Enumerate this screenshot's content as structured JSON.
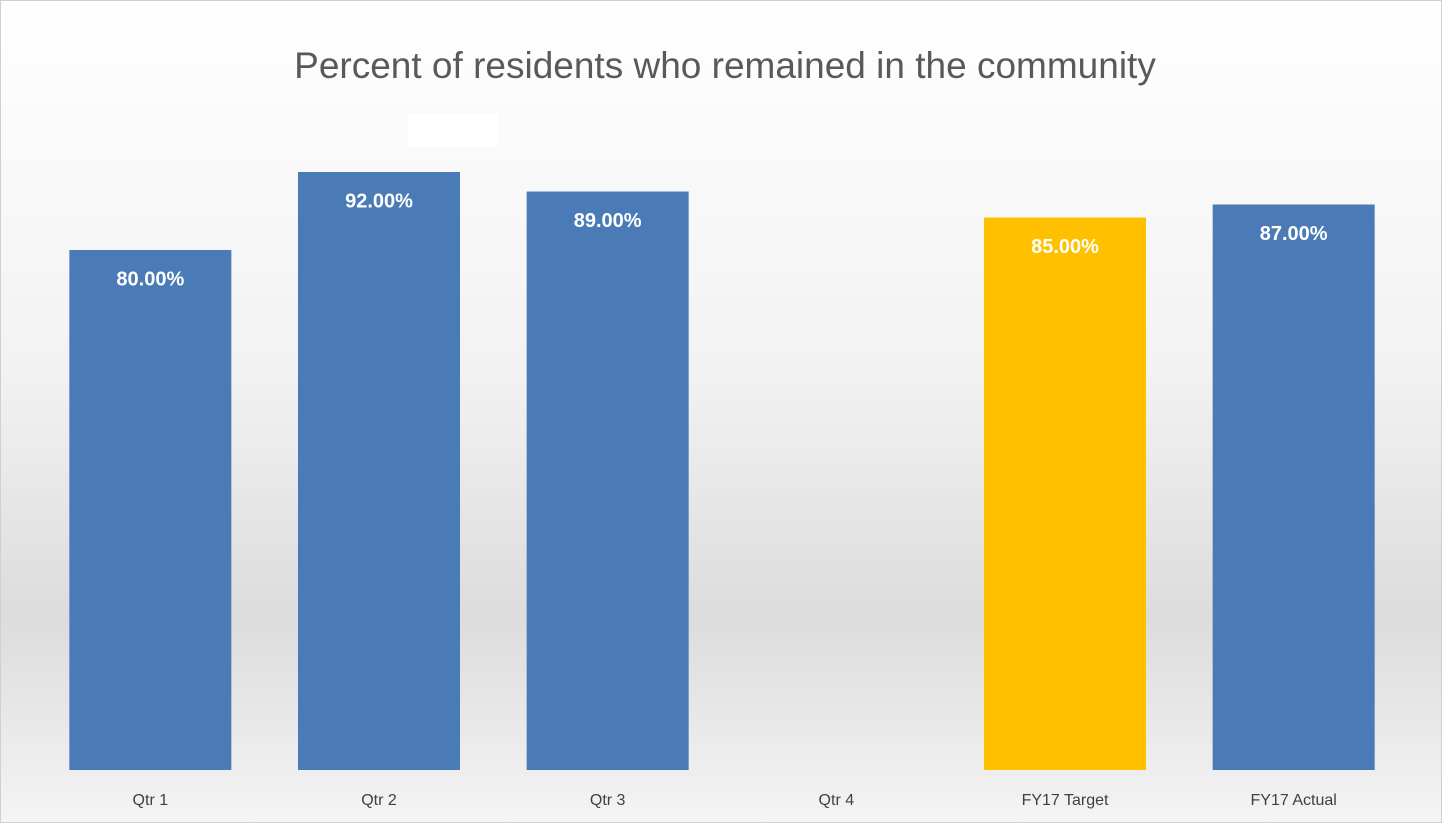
{
  "chart_data": {
    "type": "bar",
    "title": "Percent of residents who remained in the community",
    "categories": [
      "Qtr 1",
      "Qtr 2",
      "Qtr 3",
      "Qtr 4",
      "FY17 Target",
      "FY17 Actual"
    ],
    "values": [
      80,
      92,
      89,
      null,
      85,
      87
    ],
    "value_labels": [
      "80.00%",
      "92.00%",
      "89.00%",
      null,
      "85.00%",
      "87.00%"
    ],
    "colors": [
      "#4a7bb7",
      "#4a7bb7",
      "#4a7bb7",
      "#4a7bb7",
      "#ffc000",
      "#4a7bb7"
    ],
    "ylim": [
      0,
      100
    ]
  }
}
